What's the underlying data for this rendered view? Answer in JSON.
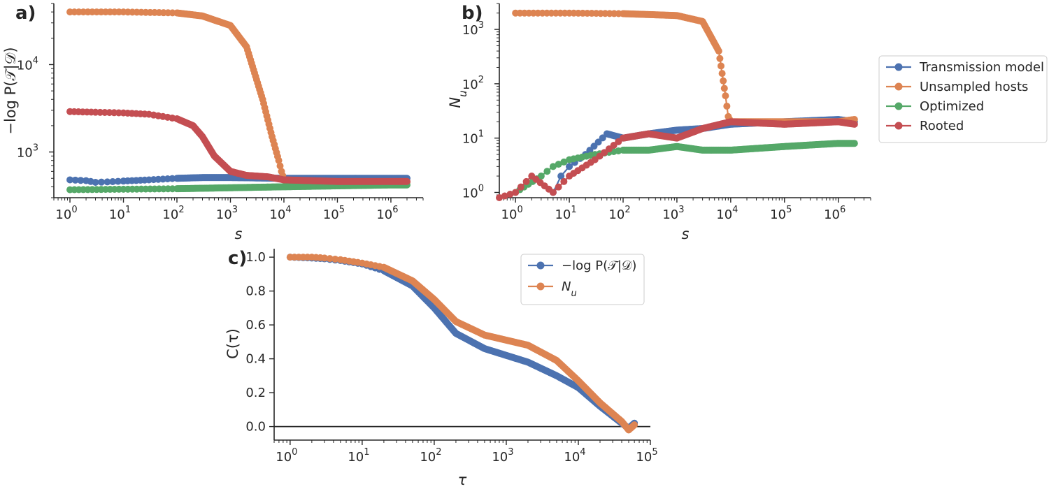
{
  "chart_data": [
    {
      "panel": "a)",
      "type": "line",
      "xscale": "log",
      "yscale": "log",
      "xlabel": "s",
      "ylabel": "−log P(𝒯|𝒟)",
      "xlim": [
        0.5,
        4000000
      ],
      "ylim": [
        300,
        50000
      ],
      "xticks": [
        {
          "v": 1,
          "e": "0"
        },
        {
          "v": 10,
          "e": "1"
        },
        {
          "v": 100,
          "e": "2"
        },
        {
          "v": 1000,
          "e": "3"
        },
        {
          "v": 10000,
          "e": "4"
        },
        {
          "v": 100000,
          "e": "5"
        },
        {
          "v": 1000000,
          "e": "6"
        }
      ],
      "yticks": [
        {
          "v": 1000,
          "e": "3"
        },
        {
          "v": 10000,
          "e": "4"
        }
      ],
      "series": [
        {
          "name": "Transmission model",
          "color": "#4c72b0",
          "x": [
            1,
            2,
            3,
            5,
            10,
            30,
            100,
            300,
            1000,
            3000,
            10000,
            100000,
            1000000,
            2000000
          ],
          "y": [
            480,
            470,
            450,
            455,
            465,
            480,
            500,
            510,
            510,
            505,
            500,
            500,
            500,
            500
          ]
        },
        {
          "name": "Unsampled hosts",
          "color": "#dd8452",
          "x": [
            1,
            10,
            100,
            300,
            1000,
            2000,
            4000,
            6000,
            8000,
            9000,
            10000,
            100000,
            1000000,
            2000000
          ],
          "y": [
            40000,
            40000,
            39000,
            36000,
            28000,
            16000,
            4000,
            1500,
            800,
            600,
            480,
            450,
            450,
            450
          ]
        },
        {
          "name": "Optimized",
          "color": "#55a868",
          "x": [
            1,
            10,
            100,
            1000,
            10000,
            100000,
            1000000,
            2000000
          ],
          "y": [
            370,
            375,
            380,
            390,
            400,
            410,
            420,
            420
          ]
        },
        {
          "name": "Rooted",
          "color": "#c44e52",
          "x": [
            1,
            3,
            10,
            30,
            100,
            200,
            300,
            500,
            1000,
            2000,
            5000,
            10000,
            100000,
            1000000,
            2000000
          ],
          "y": [
            2900,
            2850,
            2800,
            2700,
            2400,
            2000,
            1500,
            900,
            600,
            540,
            520,
            480,
            460,
            460,
            460
          ]
        }
      ]
    },
    {
      "panel": "b)",
      "type": "line",
      "xscale": "log",
      "yscale": "log",
      "xlabel": "s",
      "ylabel": "N_u",
      "xlim": [
        0.5,
        4000000
      ],
      "ylim": [
        0.8,
        3000
      ],
      "xticks": [
        {
          "v": 1,
          "e": "0"
        },
        {
          "v": 10,
          "e": "1"
        },
        {
          "v": 100,
          "e": "2"
        },
        {
          "v": 1000,
          "e": "3"
        },
        {
          "v": 10000,
          "e": "4"
        },
        {
          "v": 100000,
          "e": "5"
        },
        {
          "v": 1000000,
          "e": "6"
        }
      ],
      "yticks": [
        {
          "v": 1,
          "e": "0"
        },
        {
          "v": 10,
          "e": "1"
        },
        {
          "v": 100,
          "e": "2"
        },
        {
          "v": 1000,
          "e": "3"
        }
      ],
      "series": [
        {
          "name": "Transmission model",
          "color": "#4c72b0",
          "x": [
            5,
            7,
            10,
            20,
            50,
            100,
            300,
            1000,
            3000,
            10000,
            100000,
            1000000,
            2000000
          ],
          "y": [
            1,
            2,
            3,
            5,
            12,
            10,
            12,
            14,
            15,
            18,
            20,
            22,
            20
          ]
        },
        {
          "name": "Unsampled hosts",
          "color": "#dd8452",
          "x": [
            1,
            10,
            100,
            1000,
            3000,
            6000,
            8000,
            9000,
            10000,
            100000,
            1000000,
            2000000
          ],
          "y": [
            2000,
            2000,
            1950,
            1800,
            1400,
            400,
            60,
            25,
            20,
            20,
            20,
            22
          ]
        },
        {
          "name": "Optimized",
          "color": "#55a868",
          "x": [
            1,
            3,
            5,
            10,
            30,
            100,
            300,
            1000,
            3000,
            10000,
            100000,
            1000000,
            2000000
          ],
          "y": [
            1,
            2,
            3,
            4,
            5,
            6,
            6,
            7,
            6,
            6,
            7,
            8,
            8
          ]
        },
        {
          "name": "Rooted",
          "color": "#c44e52",
          "x": [
            0.5,
            1,
            2,
            5,
            10,
            30,
            100,
            300,
            1000,
            3000,
            10000,
            100000,
            1000000,
            2000000
          ],
          "y": [
            0.8,
            1,
            2,
            1,
            2,
            4,
            10,
            12,
            10,
            15,
            20,
            18,
            20,
            18
          ]
        }
      ],
      "legend": [
        "Transmission model",
        "Unsampled hosts",
        "Optimized",
        "Rooted"
      ],
      "legend_position": "right"
    },
    {
      "panel": "c)",
      "type": "line",
      "xscale": "log",
      "yscale": "linear",
      "xlabel": "τ",
      "ylabel": "C(τ)",
      "xlim": [
        0.6,
        100000
      ],
      "ylim": [
        -0.08,
        1.05
      ],
      "xticks": [
        {
          "v": 1,
          "e": "0"
        },
        {
          "v": 10,
          "e": "1"
        },
        {
          "v": 100,
          "e": "2"
        },
        {
          "v": 1000,
          "e": "3"
        },
        {
          "v": 10000,
          "e": "4"
        },
        {
          "v": 100000,
          "e": "5"
        }
      ],
      "yticks": [
        "0.0",
        "0.2",
        "0.4",
        "0.6",
        "0.8",
        "1.0"
      ],
      "hline_y": 0,
      "series": [
        {
          "name": "−log P(𝒯|𝒟)",
          "color": "#4c72b0",
          "x": [
            1,
            2,
            3,
            5,
            10,
            20,
            50,
            100,
            200,
            500,
            1000,
            2000,
            5000,
            10000,
            20000,
            40000,
            50000,
            60000
          ],
          "y": [
            1.0,
            0.995,
            0.99,
            0.98,
            0.96,
            0.92,
            0.83,
            0.7,
            0.55,
            0.46,
            0.42,
            0.38,
            0.3,
            0.23,
            0.12,
            0.02,
            -0.01,
            0.02
          ]
        },
        {
          "name": "N_u",
          "color": "#dd8452",
          "x": [
            1,
            2,
            3,
            5,
            10,
            20,
            50,
            100,
            200,
            500,
            1000,
            2000,
            5000,
            10000,
            20000,
            40000,
            50000,
            60000
          ],
          "y": [
            1.0,
            1.0,
            0.995,
            0.985,
            0.965,
            0.94,
            0.86,
            0.75,
            0.62,
            0.54,
            0.51,
            0.48,
            0.39,
            0.27,
            0.14,
            0.03,
            -0.02,
            0.01
          ]
        }
      ],
      "legend": [
        "−log P(𝒯|𝒟)",
        "N_u"
      ],
      "legend_position": "upper right"
    }
  ]
}
